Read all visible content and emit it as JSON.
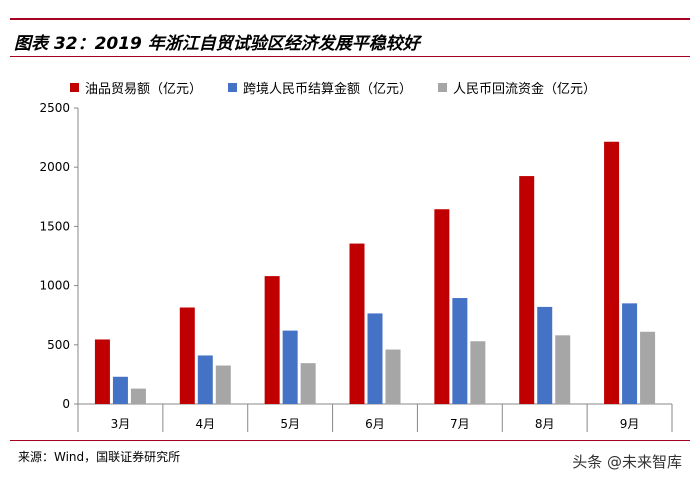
{
  "header": {
    "title": "图表 32：2019 年浙江自贸试验区经济发展平稳较好"
  },
  "footer": {
    "source": "来源：Wind，国联证券研究所",
    "watermark": "头条 @未来智库"
  },
  "colors": {
    "series0": "#c00000",
    "series1": "#4472c4",
    "series2": "#a6a6a6",
    "accent": "#a50021"
  },
  "chart_data": {
    "type": "bar",
    "categories": [
      "3月",
      "4月",
      "5月",
      "6月",
      "7月",
      "8月",
      "9月"
    ],
    "series": [
      {
        "name": "油品贸易额（亿元）",
        "values": [
          545,
          815,
          1080,
          1355,
          1645,
          1925,
          2215
        ]
      },
      {
        "name": "跨境人民币结算金额（亿元）",
        "values": [
          230,
          410,
          620,
          765,
          895,
          820,
          850
        ]
      },
      {
        "name": "人民币回流资金（亿元）",
        "values": [
          130,
          325,
          345,
          460,
          530,
          580,
          610
        ]
      }
    ],
    "ylim": [
      0,
      2500
    ],
    "yticks": [
      0,
      500,
      1000,
      1500,
      2000,
      2500
    ],
    "legend_position": "top",
    "grid": false
  }
}
